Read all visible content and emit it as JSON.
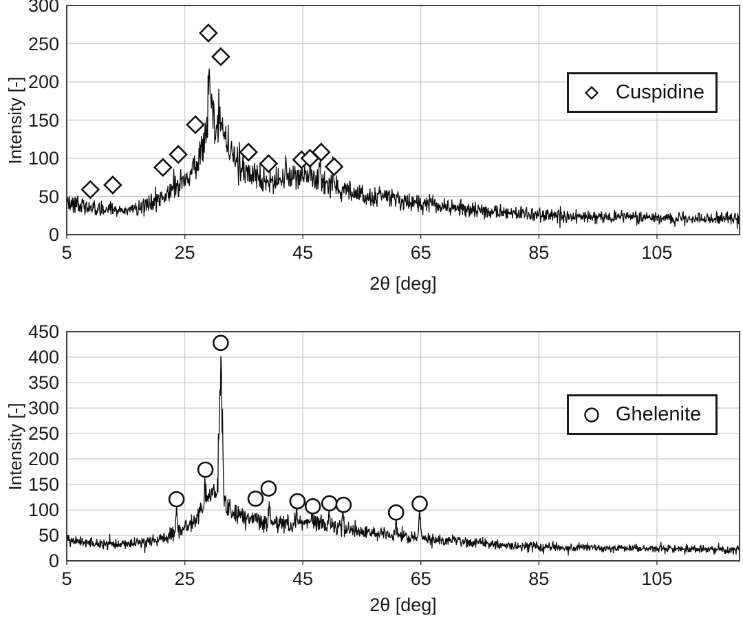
{
  "figure": {
    "background": "#ffffff",
    "trace_color": "#0c0c0c",
    "grid_color": "#c9c9c9",
    "frame_color": "#3f3f3f",
    "text_color": "#191919",
    "marker_fill": "#ffffff",
    "marker_stroke": "#111111"
  },
  "chart_data": [
    {
      "type": "line",
      "title": "",
      "xlabel": "2θ [deg]",
      "ylabel": "Intensity [-]",
      "xlim": [
        5,
        119
      ],
      "ylim": [
        0,
        300
      ],
      "x_ticks": [
        5,
        25,
        45,
        65,
        85,
        105
      ],
      "y_ticks": [
        0,
        50,
        100,
        150,
        200,
        250,
        300
      ],
      "grid": true,
      "legend": {
        "label": "Cuspidine",
        "marker": "diamond",
        "position": "upper-right"
      },
      "series": [
        {
          "name": "xrd-intensity-trace",
          "style": "noisy-line",
          "color": "#0c0c0c",
          "noise_frac": 0.14,
          "noise_base": 3.5,
          "profile": [
            [
              5,
              44
            ],
            [
              6,
              41
            ],
            [
              8,
              37
            ],
            [
              10,
              34
            ],
            [
              12,
              33
            ],
            [
              14,
              33
            ],
            [
              16,
              34
            ],
            [
              18,
              37
            ],
            [
              20,
              44
            ],
            [
              22,
              52
            ],
            [
              24,
              64
            ],
            [
              25,
              72
            ],
            [
              26,
              82
            ],
            [
              27,
              95
            ],
            [
              28,
              115
            ],
            [
              29,
              138
            ],
            [
              29.8,
              148
            ],
            [
              30.5,
              145
            ],
            [
              31.2,
              138
            ],
            [
              32,
              122
            ],
            [
              33,
              105
            ],
            [
              34,
              94
            ],
            [
              35,
              86
            ],
            [
              36,
              80
            ],
            [
              37,
              75
            ],
            [
              38,
              72
            ],
            [
              39,
              71
            ],
            [
              40,
              71
            ],
            [
              42,
              72
            ],
            [
              44,
              75
            ],
            [
              45,
              76
            ],
            [
              46,
              76
            ],
            [
              47,
              74
            ],
            [
              48,
              71
            ],
            [
              49,
              67
            ],
            [
              50,
              63
            ],
            [
              52,
              58
            ],
            [
              54,
              55
            ],
            [
              56,
              52
            ],
            [
              58,
              50
            ],
            [
              60,
              48
            ],
            [
              62,
              45
            ],
            [
              64,
              42
            ],
            [
              66,
              40
            ],
            [
              68,
              38
            ],
            [
              70,
              36
            ],
            [
              73,
              33
            ],
            [
              76,
              31
            ],
            [
              80,
              28
            ],
            [
              84,
              27
            ],
            [
              88,
              25
            ],
            [
              92,
              24
            ],
            [
              96,
              23
            ],
            [
              100,
              23
            ],
            [
              104,
              22
            ],
            [
              108,
              22
            ],
            [
              112,
              21
            ],
            [
              116,
              21
            ],
            [
              119,
              21
            ]
          ],
          "spikes": [
            [
              29.2,
              220,
              0.5
            ],
            [
              31.0,
              170,
              0.45
            ],
            [
              42.0,
              95,
              0.25
            ],
            [
              44.9,
              98,
              0.25
            ],
            [
              46.3,
              95,
              0.22
            ],
            [
              47.9,
              104,
              0.28
            ],
            [
              50.2,
              85,
              0.22
            ]
          ]
        },
        {
          "name": "cuspidine-reference-peaks",
          "style": "scatter",
          "marker": "diamond",
          "points": [
            [
              9.0,
              59
            ],
            [
              12.8,
              65
            ],
            [
              21.3,
              88
            ],
            [
              23.9,
              105
            ],
            [
              26.8,
              144
            ],
            [
              29.0,
              264
            ],
            [
              31.1,
              233
            ],
            [
              35.8,
              108
            ],
            [
              39.2,
              93
            ],
            [
              44.8,
              98
            ],
            [
              46.2,
              100
            ],
            [
              48.1,
              108
            ],
            [
              50.3,
              89
            ]
          ]
        }
      ]
    },
    {
      "type": "line",
      "title": "",
      "xlabel": "2θ [deg]",
      "ylabel": "Intensity [-]",
      "xlim": [
        5,
        119
      ],
      "ylim": [
        0,
        450
      ],
      "x_ticks": [
        5,
        25,
        45,
        65,
        85,
        105
      ],
      "y_ticks": [
        0,
        50,
        100,
        150,
        200,
        250,
        300,
        350,
        400,
        450
      ],
      "grid": true,
      "legend": {
        "label": "Ghelenite",
        "marker": "circle",
        "position": "upper-right"
      },
      "series": [
        {
          "name": "xrd-intensity-trace",
          "style": "noisy-line",
          "color": "#0c0c0c",
          "noise_frac": 0.14,
          "noise_base": 3.5,
          "profile": [
            [
              5,
              42
            ],
            [
              6,
              40
            ],
            [
              8,
              37
            ],
            [
              10,
              35
            ],
            [
              12,
              34
            ],
            [
              14,
              33
            ],
            [
              16,
              34
            ],
            [
              18,
              36
            ],
            [
              20,
              40
            ],
            [
              22,
              47
            ],
            [
              24,
              57
            ],
            [
              25,
              64
            ],
            [
              26,
              73
            ],
            [
              27,
              85
            ],
            [
              28,
              100
            ],
            [
              29,
              118
            ],
            [
              30,
              132
            ],
            [
              30.8,
              138
            ],
            [
              31.5,
              128
            ],
            [
              32,
              115
            ],
            [
              33,
              100
            ],
            [
              34,
              90
            ],
            [
              35,
              84
            ],
            [
              36,
              80
            ],
            [
              37,
              77
            ],
            [
              38,
              75
            ],
            [
              39,
              73
            ],
            [
              40,
              72
            ],
            [
              42,
              73
            ],
            [
              44,
              75
            ],
            [
              45,
              75
            ],
            [
              46,
              74
            ],
            [
              47,
              74
            ],
            [
              48,
              72
            ],
            [
              49,
              70
            ],
            [
              50,
              68
            ],
            [
              51,
              65
            ],
            [
              52,
              62
            ],
            [
              54,
              58
            ],
            [
              56,
              55
            ],
            [
              58,
              52
            ],
            [
              60,
              50
            ],
            [
              62,
              47
            ],
            [
              64,
              45
            ],
            [
              66,
              43
            ],
            [
              68,
              41
            ],
            [
              70,
              39
            ],
            [
              73,
              36
            ],
            [
              76,
              33
            ],
            [
              80,
              30
            ],
            [
              84,
              28
            ],
            [
              88,
              27
            ],
            [
              92,
              26
            ],
            [
              96,
              25
            ],
            [
              100,
              24
            ],
            [
              104,
              23
            ],
            [
              108,
              23
            ],
            [
              112,
              22
            ],
            [
              116,
              22
            ],
            [
              119,
              21
            ]
          ],
          "spikes": [
            [
              23.6,
              100,
              0.25
            ],
            [
              28.4,
              162,
              0.3
            ],
            [
              31.1,
              400,
              0.55
            ],
            [
              37.0,
              105,
              0.25
            ],
            [
              39.3,
              112,
              0.28
            ],
            [
              44.0,
              100,
              0.25
            ],
            [
              46.6,
              96,
              0.22
            ],
            [
              49.4,
              99,
              0.25
            ],
            [
              51.8,
              96,
              0.22
            ],
            [
              60.8,
              82,
              0.22
            ],
            [
              64.8,
              94,
              0.28
            ]
          ]
        },
        {
          "name": "ghelenite-reference-peaks",
          "style": "scatter",
          "marker": "circle",
          "points": [
            [
              23.6,
              121
            ],
            [
              28.5,
              179
            ],
            [
              31.1,
              428
            ],
            [
              37.0,
              122
            ],
            [
              39.2,
              142
            ],
            [
              44.1,
              117
            ],
            [
              46.7,
              107
            ],
            [
              49.5,
              113
            ],
            [
              51.9,
              110
            ],
            [
              60.8,
              95
            ],
            [
              64.8,
              112
            ]
          ]
        }
      ]
    }
  ]
}
